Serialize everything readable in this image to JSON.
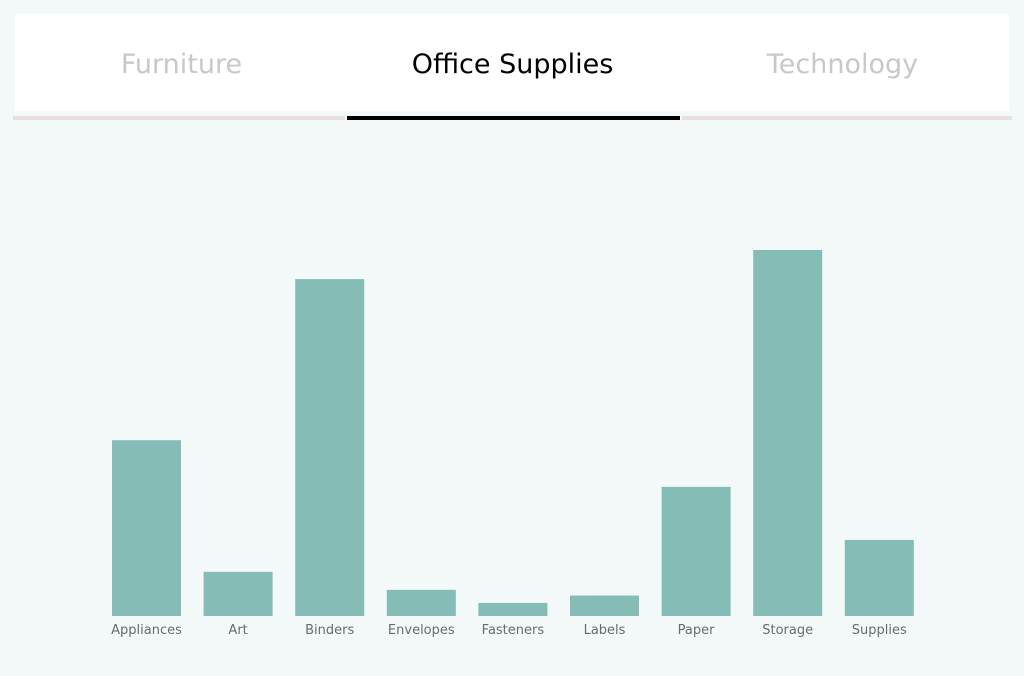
{
  "tabs": [
    {
      "label": "Furniture",
      "active": false
    },
    {
      "label": "Office Supplies",
      "active": true
    },
    {
      "label": "Technology",
      "active": false
    }
  ],
  "colors": {
    "bar": "#85bdb6",
    "active_tab": "#000000",
    "inactive_tab": "#c8c8c8",
    "underline_inactive": "#e9dfdd"
  },
  "chart_data": {
    "type": "bar",
    "title": "",
    "xlabel": "",
    "ylabel": "",
    "grid": false,
    "axis_visible": false,
    "categories": [
      "Appliances",
      "Art",
      "Binders",
      "Envelopes",
      "Fasteners",
      "Labels",
      "Paper",
      "Storage",
      "Supplies"
    ],
    "values": [
      107.5,
      27,
      206,
      16,
      8,
      12.5,
      79,
      223.8,
      46.5
    ],
    "ylim": [
      0,
      223.8
    ]
  }
}
